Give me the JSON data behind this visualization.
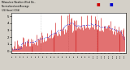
{
  "title": "Milwaukee Weather Wind Dir...",
  "bg_color": "#d4d0c8",
  "plot_bg_color": "#ffffff",
  "grid_color": "#aaaaaa",
  "bar_color": "#cc0000",
  "line_color": "#0000cc",
  "ylim": [
    -0.3,
    5.5
  ],
  "ytick_vals": [
    0,
    1,
    2,
    3,
    4,
    5
  ],
  "n_points": 144,
  "seed": 42,
  "n_gridlines": 4
}
